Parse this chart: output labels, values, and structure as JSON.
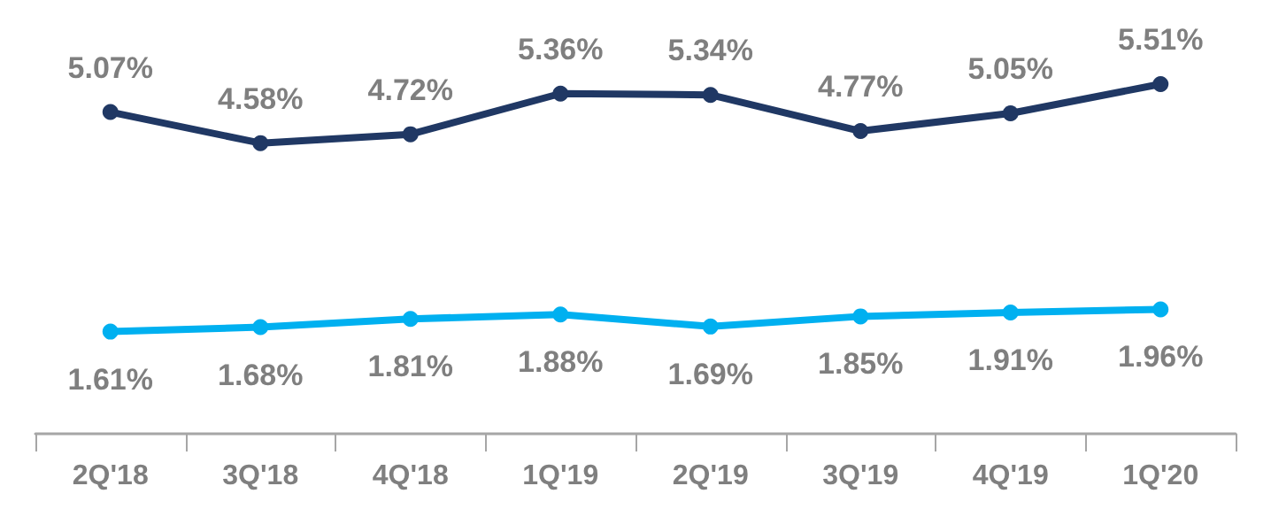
{
  "chart_data": {
    "type": "line",
    "categories": [
      "2Q'18",
      "3Q'18",
      "4Q'18",
      "1Q'19",
      "2Q'19",
      "3Q'19",
      "4Q'19",
      "1Q'20"
    ],
    "series": [
      {
        "color": "#203864",
        "values": [
          5.07,
          4.58,
          4.72,
          5.36,
          5.34,
          4.77,
          5.05,
          5.51
        ],
        "value_labels": [
          "5.07%",
          "4.58%",
          "4.72%",
          "5.36%",
          "5.34%",
          "4.77%",
          "5.05%",
          "5.51%"
        ]
      },
      {
        "color": "#00b0f0",
        "values": [
          1.61,
          1.68,
          1.81,
          1.88,
          1.69,
          1.85,
          1.91,
          1.96
        ],
        "value_labels": [
          "1.61%",
          "1.68%",
          "1.81%",
          "1.88%",
          "1.69%",
          "1.85%",
          "1.91%",
          "1.96%"
        ]
      }
    ],
    "marker": "circle",
    "line_style": "solid"
  }
}
